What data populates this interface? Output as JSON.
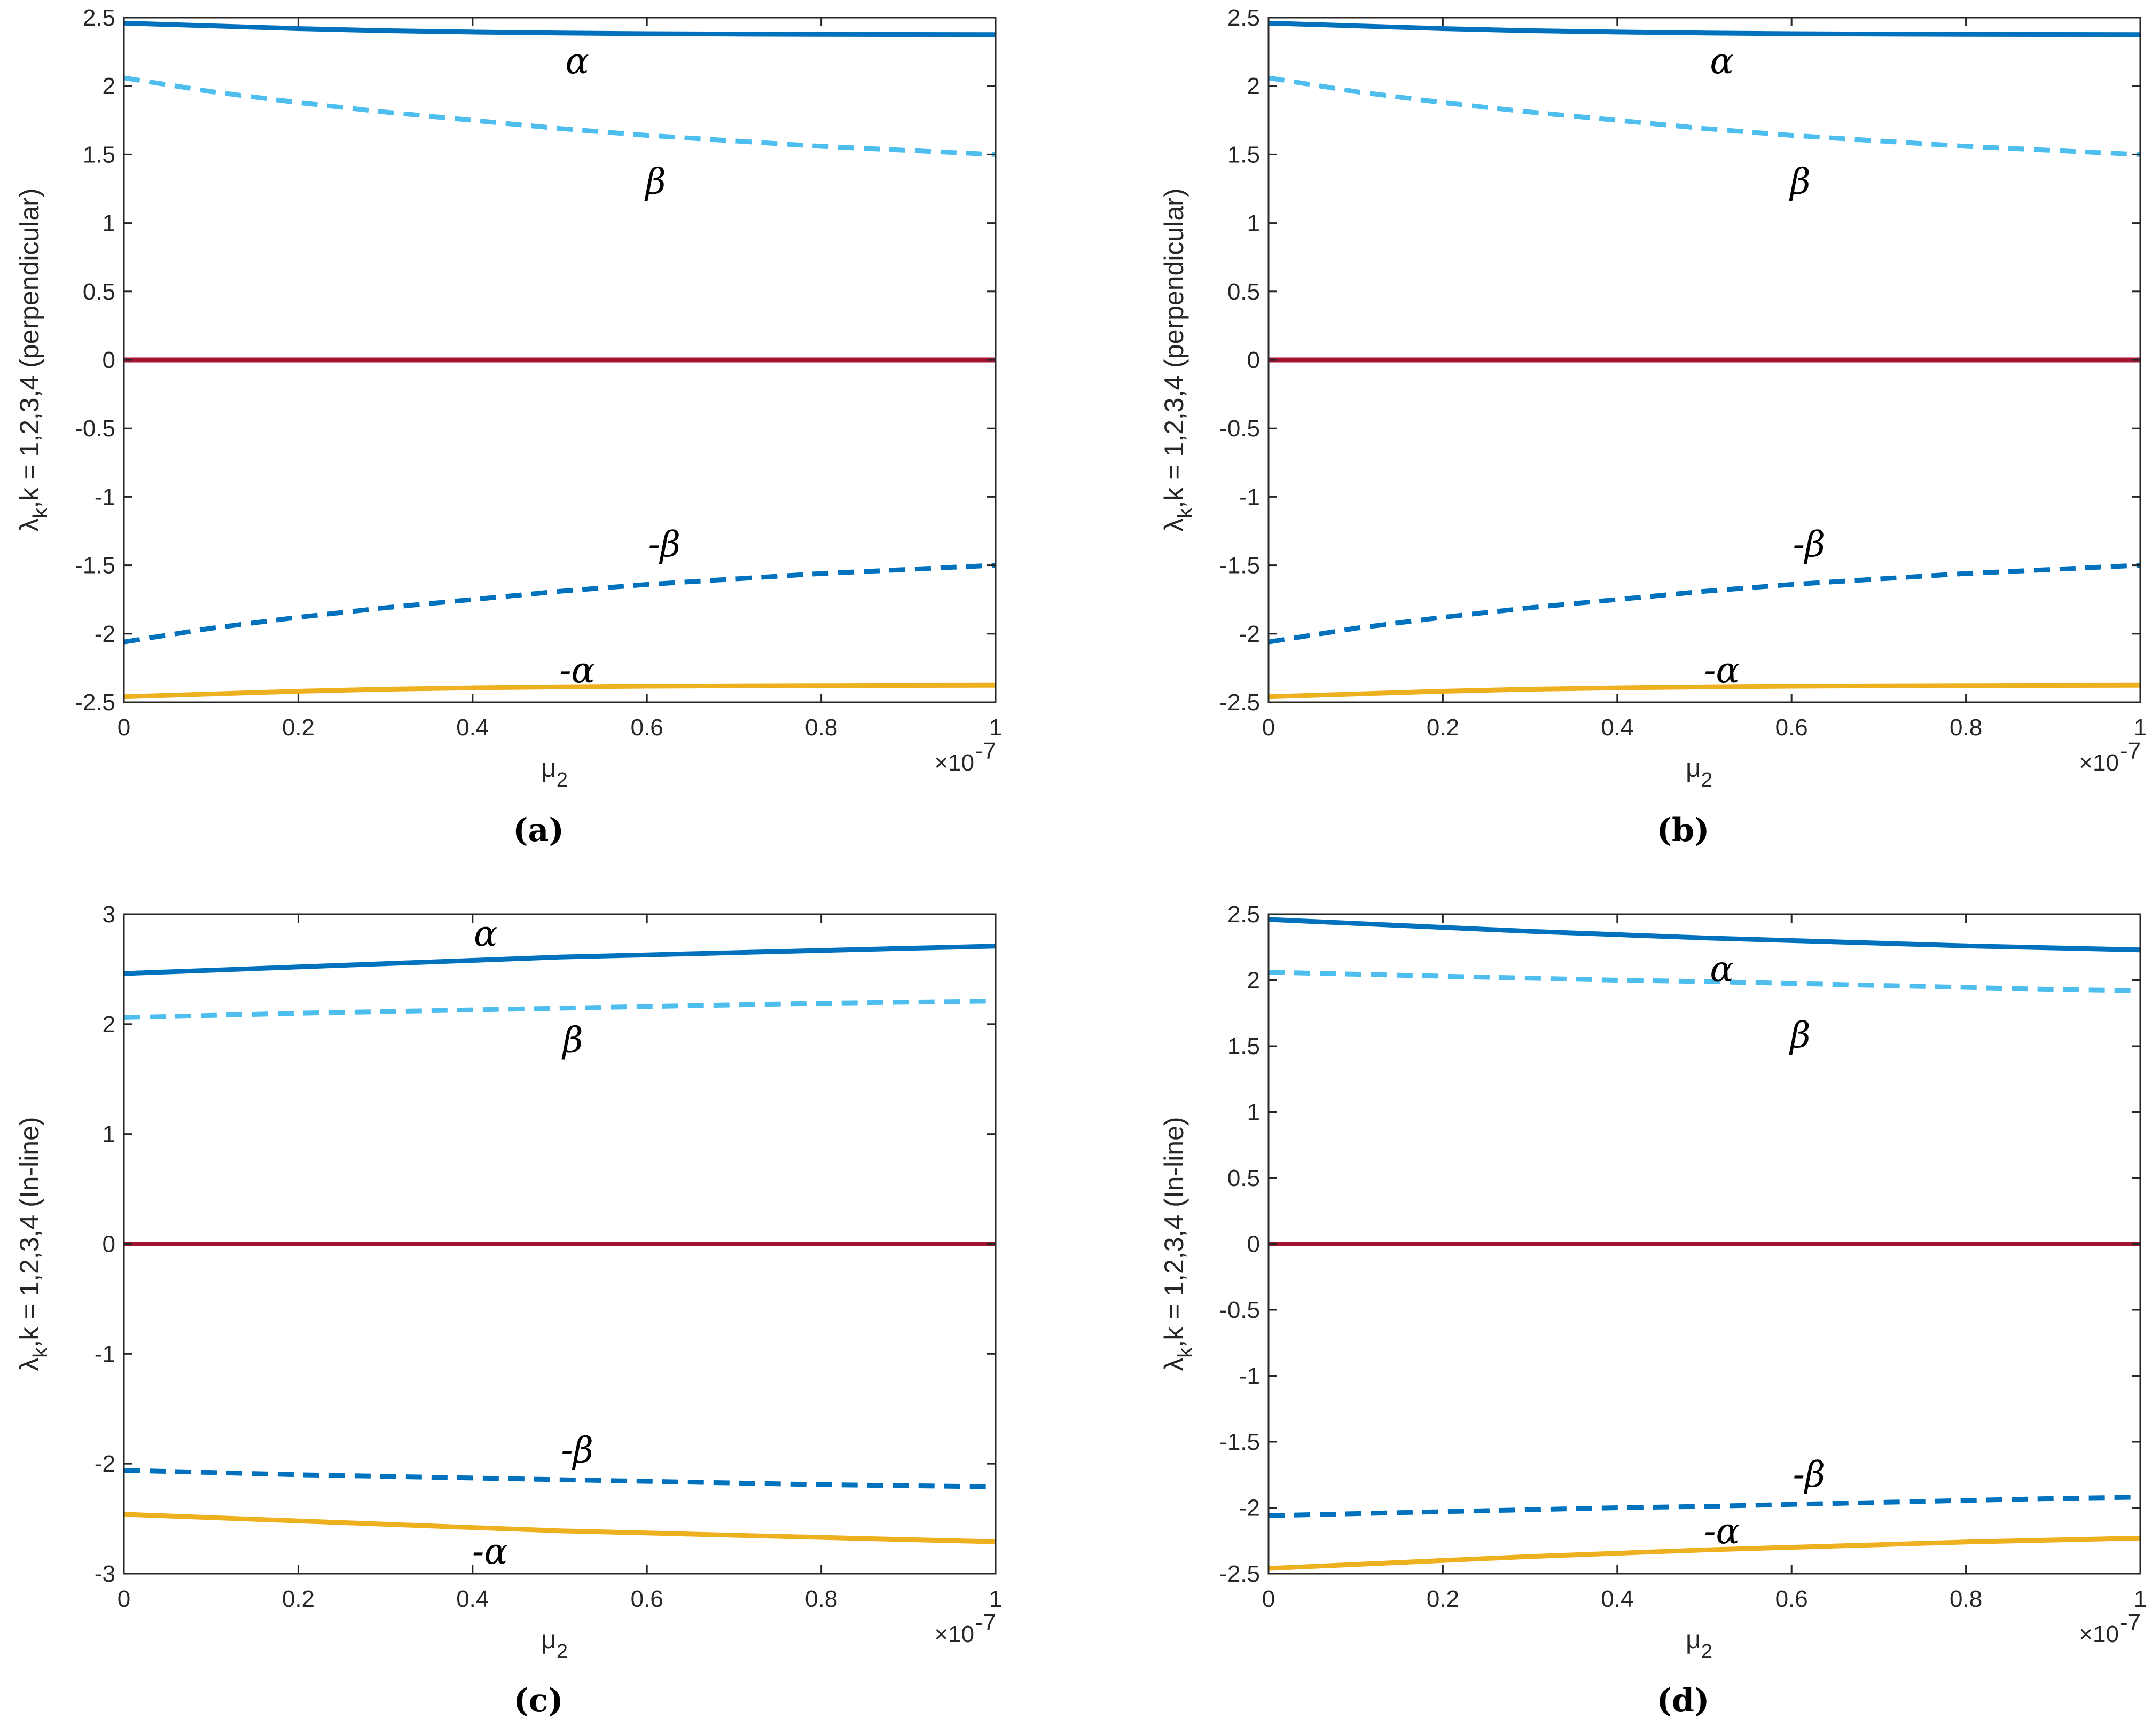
{
  "figure": {
    "colors": {
      "alpha": "#0072BD",
      "beta": "#4DBEEE",
      "neg_beta": "#0072BD",
      "neg_alpha": "#EDB120",
      "zero": "#A2142F",
      "axis": "#262626"
    }
  },
  "chart_data": [
    {
      "type": "line",
      "panel": "(a)",
      "xlabel_main": "μ",
      "xlabel_sub": "2",
      "ylabel": "λ",
      "ylabel_sub": "k",
      "ylabel_rest": ",k = 1,2,3,4 (perpendicular)",
      "x_exponent_base": "×10",
      "x_exponent_power": "-7",
      "xlim": [
        0,
        1
      ],
      "ylim": [
        -2.5,
        2.5
      ],
      "xticks": [
        0,
        0.2,
        0.4,
        0.6,
        0.8,
        1
      ],
      "xtick_labels": [
        "0",
        "0.2",
        "0.4",
        "0.6",
        "0.8",
        "1"
      ],
      "yticks": [
        -2.5,
        -2,
        -1.5,
        -1,
        -0.5,
        0,
        0.5,
        1,
        1.5,
        2,
        2.5
      ],
      "ytick_labels": [
        "-2.5",
        "-2",
        "-1.5",
        "-1",
        "-0.5",
        "0",
        "0.5",
        "1",
        "1.5",
        "2",
        "2.5"
      ],
      "x": [
        0,
        0.1,
        0.2,
        0.3,
        0.4,
        0.5,
        0.6,
        0.7,
        0.8,
        0.9,
        1.0
      ],
      "series": [
        {
          "name": "α",
          "style": "solid",
          "color_key": "alpha",
          "values": [
            2.46,
            2.44,
            2.42,
            2.405,
            2.395,
            2.388,
            2.383,
            2.38,
            2.378,
            2.377,
            2.376
          ]
        },
        {
          "name": "β",
          "style": "dashed",
          "color_key": "beta",
          "values": [
            2.06,
            1.96,
            1.88,
            1.81,
            1.75,
            1.69,
            1.64,
            1.6,
            1.56,
            1.53,
            1.5
          ]
        },
        {
          "name": "zero",
          "style": "solid",
          "color_key": "zero",
          "values": [
            0,
            0,
            0,
            0,
            0,
            0,
            0,
            0,
            0,
            0,
            0
          ]
        },
        {
          "name": "-β",
          "style": "dashed",
          "color_key": "neg_beta",
          "values": [
            -2.06,
            -1.96,
            -1.88,
            -1.81,
            -1.75,
            -1.69,
            -1.64,
            -1.6,
            -1.56,
            -1.53,
            -1.5
          ]
        },
        {
          "name": "-α",
          "style": "solid",
          "color_key": "neg_alpha",
          "values": [
            -2.46,
            -2.44,
            -2.42,
            -2.405,
            -2.395,
            -2.388,
            -2.383,
            -2.38,
            -2.378,
            -2.377,
            -2.376
          ]
        }
      ],
      "annotations": [
        {
          "text": "α",
          "x": 0.52,
          "y": 2.18
        },
        {
          "text": "β",
          "x": 0.61,
          "y": 1.3
        },
        {
          "text": "-β",
          "x": 0.62,
          "y": -1.35
        },
        {
          "text": "-α",
          "x": 0.52,
          "y": -2.27
        }
      ]
    },
    {
      "type": "line",
      "panel": "(b)",
      "xlabel_main": "μ",
      "xlabel_sub": "2",
      "ylabel": "λ",
      "ylabel_sub": "k",
      "ylabel_rest": ",k = 1,2,3,4 (perpendicular)",
      "x_exponent_base": "×10",
      "x_exponent_power": "-7",
      "xlim": [
        0,
        1
      ],
      "ylim": [
        -2.5,
        2.5
      ],
      "xticks": [
        0,
        0.2,
        0.4,
        0.6,
        0.8,
        1
      ],
      "xtick_labels": [
        "0",
        "0.2",
        "0.4",
        "0.6",
        "0.8",
        "1"
      ],
      "yticks": [
        -2.5,
        -2,
        -1.5,
        -1,
        -0.5,
        0,
        0.5,
        1,
        1.5,
        2,
        2.5
      ],
      "ytick_labels": [
        "-2.5",
        "-2",
        "-1.5",
        "-1",
        "-0.5",
        "0",
        "0.5",
        "1",
        "1.5",
        "2",
        "2.5"
      ],
      "x": [
        0,
        0.1,
        0.2,
        0.3,
        0.4,
        0.5,
        0.6,
        0.7,
        0.8,
        0.9,
        1.0
      ],
      "series": [
        {
          "name": "α",
          "style": "solid",
          "color_key": "alpha",
          "values": [
            2.46,
            2.44,
            2.42,
            2.405,
            2.395,
            2.388,
            2.383,
            2.38,
            2.378,
            2.377,
            2.376
          ]
        },
        {
          "name": "β",
          "style": "dashed",
          "color_key": "beta",
          "values": [
            2.06,
            1.96,
            1.88,
            1.81,
            1.75,
            1.69,
            1.64,
            1.6,
            1.56,
            1.53,
            1.5
          ]
        },
        {
          "name": "zero",
          "style": "solid",
          "color_key": "zero",
          "values": [
            0,
            0,
            0,
            0,
            0,
            0,
            0,
            0,
            0,
            0,
            0
          ]
        },
        {
          "name": "-β",
          "style": "dashed",
          "color_key": "neg_beta",
          "values": [
            -2.06,
            -1.96,
            -1.88,
            -1.81,
            -1.75,
            -1.69,
            -1.64,
            -1.6,
            -1.56,
            -1.53,
            -1.5
          ]
        },
        {
          "name": "-α",
          "style": "solid",
          "color_key": "neg_alpha",
          "values": [
            -2.46,
            -2.44,
            -2.42,
            -2.405,
            -2.395,
            -2.388,
            -2.383,
            -2.38,
            -2.378,
            -2.377,
            -2.376
          ]
        }
      ],
      "annotations": [
        {
          "text": "α",
          "x": 0.52,
          "y": 2.18
        },
        {
          "text": "β",
          "x": 0.61,
          "y": 1.3
        },
        {
          "text": "-β",
          "x": 0.62,
          "y": -1.35
        },
        {
          "text": "-α",
          "x": 0.52,
          "y": -2.27
        }
      ]
    },
    {
      "type": "line",
      "panel": "(c)",
      "xlabel_main": "μ",
      "xlabel_sub": "2",
      "ylabel": "λ",
      "ylabel_sub": "k",
      "ylabel_rest": ",k = 1,2,3,4 (In-line)",
      "x_exponent_base": "×10",
      "x_exponent_power": "-7",
      "xlim": [
        0,
        1
      ],
      "ylim": [
        -3,
        3
      ],
      "xticks": [
        0,
        0.2,
        0.4,
        0.6,
        0.8,
        1
      ],
      "xtick_labels": [
        "0",
        "0.2",
        "0.4",
        "0.6",
        "0.8",
        "1"
      ],
      "yticks": [
        -3,
        -2,
        -1,
        0,
        1,
        2,
        3
      ],
      "ytick_labels": [
        "-3",
        "-2",
        "-1",
        "0",
        "1",
        "2",
        "3"
      ],
      "x": [
        0,
        0.1,
        0.2,
        0.3,
        0.4,
        0.5,
        0.6,
        0.7,
        0.8,
        0.9,
        1.0
      ],
      "series": [
        {
          "name": "α",
          "style": "solid",
          "color_key": "alpha",
          "values": [
            2.46,
            2.49,
            2.52,
            2.55,
            2.58,
            2.61,
            2.63,
            2.65,
            2.67,
            2.69,
            2.71
          ]
        },
        {
          "name": "β",
          "style": "dashed",
          "color_key": "beta",
          "values": [
            2.06,
            2.08,
            2.1,
            2.115,
            2.13,
            2.145,
            2.16,
            2.175,
            2.19,
            2.2,
            2.21
          ]
        },
        {
          "name": "zero",
          "style": "solid",
          "color_key": "zero",
          "values": [
            0,
            0,
            0,
            0,
            0,
            0,
            0,
            0,
            0,
            0,
            0
          ]
        },
        {
          "name": "-β",
          "style": "dashed",
          "color_key": "neg_beta",
          "values": [
            -2.06,
            -2.08,
            -2.1,
            -2.115,
            -2.13,
            -2.145,
            -2.16,
            -2.175,
            -2.19,
            -2.2,
            -2.21
          ]
        },
        {
          "name": "-α",
          "style": "solid",
          "color_key": "neg_alpha",
          "values": [
            -2.46,
            -2.49,
            -2.52,
            -2.55,
            -2.58,
            -2.61,
            -2.63,
            -2.65,
            -2.67,
            -2.69,
            -2.71
          ]
        }
      ],
      "annotations": [
        {
          "text": "α",
          "x": 0.415,
          "y": 2.82
        },
        {
          "text": "β",
          "x": 0.515,
          "y": 1.85
        },
        {
          "text": "-β",
          "x": 0.52,
          "y": -1.88
        },
        {
          "text": "-α",
          "x": 0.42,
          "y": -2.8
        }
      ]
    },
    {
      "type": "line",
      "panel": "(d)",
      "xlabel_main": "μ",
      "xlabel_sub": "2",
      "ylabel": "λ",
      "ylabel_sub": "k",
      "ylabel_rest": ",k = 1,2,3,4 (In-line)",
      "x_exponent_base": "×10",
      "x_exponent_power": "-7",
      "xlim": [
        0,
        1
      ],
      "ylim": [
        -2.5,
        2.5
      ],
      "xticks": [
        0,
        0.2,
        0.4,
        0.6,
        0.8,
        1
      ],
      "xtick_labels": [
        "0",
        "0.2",
        "0.4",
        "0.6",
        "0.8",
        "1"
      ],
      "yticks": [
        -2.5,
        -2,
        -1.5,
        -1,
        -0.5,
        0,
        0.5,
        1,
        1.5,
        2,
        2.5
      ],
      "ytick_labels": [
        "-2.5",
        "-2",
        "-1.5",
        "-1",
        "-0.5",
        "0",
        "0.5",
        "1",
        "1.5",
        "2",
        "2.5"
      ],
      "x": [
        0,
        0.1,
        0.2,
        0.3,
        0.4,
        0.5,
        0.6,
        0.7,
        0.8,
        0.9,
        1.0
      ],
      "series": [
        {
          "name": "α",
          "style": "solid",
          "color_key": "alpha",
          "values": [
            2.46,
            2.43,
            2.4,
            2.37,
            2.345,
            2.32,
            2.3,
            2.28,
            2.26,
            2.245,
            2.23
          ]
        },
        {
          "name": "β",
          "style": "dashed",
          "color_key": "beta",
          "values": [
            2.06,
            2.045,
            2.03,
            2.015,
            2.0,
            1.99,
            1.975,
            1.96,
            1.945,
            1.93,
            1.92
          ]
        },
        {
          "name": "zero",
          "style": "solid",
          "color_key": "zero",
          "values": [
            0,
            0,
            0,
            0,
            0,
            0,
            0,
            0,
            0,
            0,
            0
          ]
        },
        {
          "name": "-β",
          "style": "dashed",
          "color_key": "neg_beta",
          "values": [
            -2.06,
            -2.045,
            -2.03,
            -2.015,
            -2.0,
            -1.99,
            -1.975,
            -1.96,
            -1.945,
            -1.93,
            -1.92
          ]
        },
        {
          "name": "-α",
          "style": "solid",
          "color_key": "neg_alpha",
          "values": [
            -2.46,
            -2.43,
            -2.4,
            -2.37,
            -2.345,
            -2.32,
            -2.3,
            -2.28,
            -2.26,
            -2.245,
            -2.23
          ]
        }
      ],
      "annotations": [
        {
          "text": "α",
          "x": 0.52,
          "y": 2.08
        },
        {
          "text": "β",
          "x": 0.61,
          "y": 1.58
        },
        {
          "text": "-β",
          "x": 0.62,
          "y": -1.75
        },
        {
          "text": "-α",
          "x": 0.52,
          "y": -2.18
        }
      ]
    }
  ]
}
